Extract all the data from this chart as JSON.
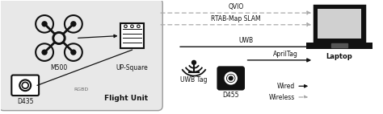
{
  "bg_color": "#ffffff",
  "dark": "#111111",
  "gray": "#aaaaaa",
  "box_fill": "#e8e8e8",
  "box_edge": "#999999",
  "labels": {
    "m500": "M500",
    "upsquare": "UP-Square",
    "d435": "D435",
    "rgbd": "RGBD",
    "flight_unit": "Flight Unit",
    "uwb_tag": "UWB Tag",
    "d455": "D455",
    "laptop": "Laptop",
    "wired": "Wired",
    "wireless": "Wireless",
    "qvio": "QVIO",
    "rtab": "RTAB-Map SLAM",
    "uwb": "UWB",
    "april": "AprilTag"
  },
  "figw": 4.74,
  "figh": 1.42,
  "dpi": 100
}
